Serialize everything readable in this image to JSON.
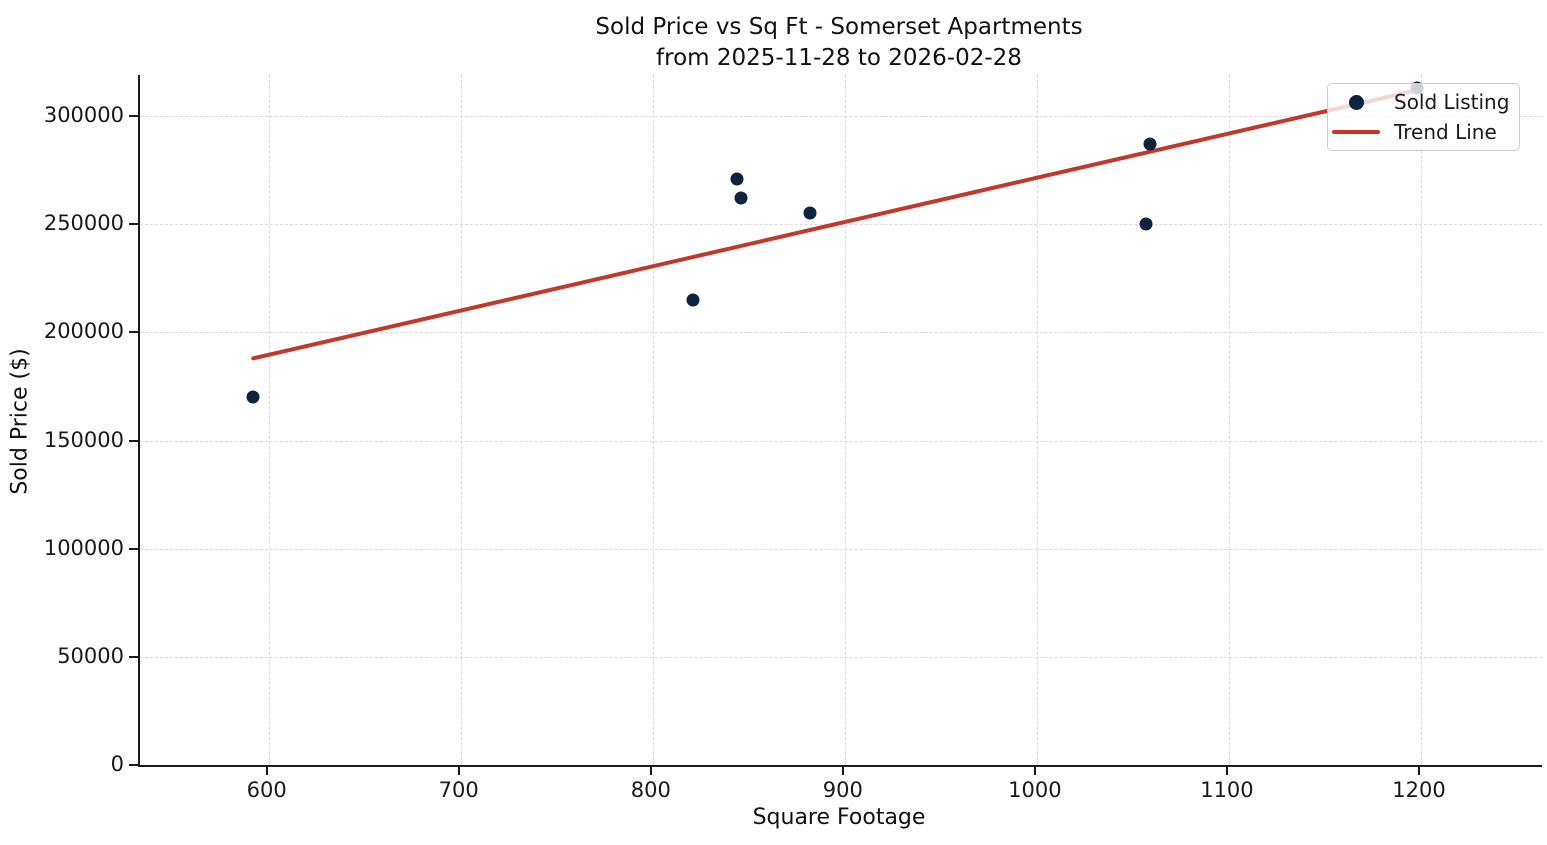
{
  "chart_data": {
    "type": "scatter",
    "title": "Sold Price vs Sq Ft - Somerset Apartments",
    "subtitle": "from 2025-11-28 to 2026-02-28",
    "xlabel": "Square Footage",
    "ylabel": "Sold Price ($)",
    "xlim": [
      533,
      1263
    ],
    "ylim": [
      0,
      319000
    ],
    "x_ticks": [
      600,
      700,
      800,
      900,
      1000,
      1100,
      1200
    ],
    "y_ticks": [
      0,
      50000,
      100000,
      150000,
      200000,
      250000,
      300000
    ],
    "grid": true,
    "legend_position": "upper right",
    "series": [
      {
        "name": "Sold Listing",
        "type": "scatter",
        "color": "#0d2340",
        "points": [
          {
            "sqft": 593,
            "price": 170000
          },
          {
            "sqft": 822,
            "price": 215000
          },
          {
            "sqft": 845,
            "price": 271000
          },
          {
            "sqft": 847,
            "price": 262000
          },
          {
            "sqft": 883,
            "price": 255000
          },
          {
            "sqft": 1058,
            "price": 250000
          },
          {
            "sqft": 1060,
            "price": 287000
          },
          {
            "sqft": 1199,
            "price": 313000
          }
        ]
      },
      {
        "name": "Trend Line",
        "type": "line",
        "color": "#c0392b",
        "points": [
          {
            "sqft": 593,
            "price": 188000
          },
          {
            "sqft": 1199,
            "price": 312000
          }
        ]
      }
    ],
    "colors": {
      "marker": "#0d2340",
      "trend": "#c0392b",
      "grid": "#d9d9d9",
      "text": "#1a1a1a"
    }
  }
}
